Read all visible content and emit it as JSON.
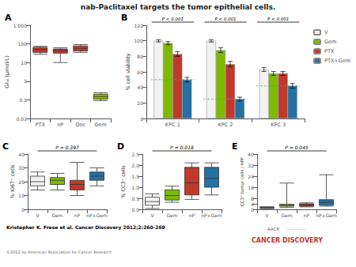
{
  "title": "nab-Paclitaxel targets the tumor epithelial cells.",
  "annotations": [
    {
      "text": "Kristopher K. Frese et al. Cancer Discovery 2012;2:260-269"
    },
    {
      "text": "©2012 by American Association for Cancer Research",
      "color": "#666666"
    },
    {
      "text": "CANCER DISCOVERY",
      "color": "#c0392b"
    },
    {
      "text": "AACR",
      "color": "#666666"
    },
    {
      "text": "—————",
      "color": "#999999"
    }
  ],
  "chart_data": [
    {
      "type": "box",
      "label": "A",
      "ylabel": "GI₅₀ (μmol/L)",
      "categories": [
        "PTX",
        "nP",
        "Doc",
        "Gem"
      ],
      "values": [
        {
          "whislo": 28,
          "q1": 35,
          "med": 50,
          "q3": 65,
          "whishi": 75
        },
        {
          "whislo": 10,
          "q1": 32,
          "med": 43,
          "q3": 53,
          "whishi": 62
        },
        {
          "whislo": 35,
          "q1": 42,
          "med": 58,
          "q3": 78,
          "whishi": 92
        },
        {
          "whislo": 0.09,
          "q1": 0.11,
          "med": 0.15,
          "q3": 0.2,
          "whishi": 0.24
        }
      ],
      "colors": [
        "#c0392b",
        "#c0392b",
        "#c0392b",
        "#8db600"
      ],
      "log": "y",
      "ylim": [
        0.01,
        1000
      ],
      "yticks": [
        0.01,
        0.1,
        1,
        10,
        100,
        {
          "value": 1000,
          "label": "1,000"
        }
      ],
      "grid": false
    },
    {
      "type": "bar",
      "label": "B",
      "ylabel": "% cell viability",
      "categories": [
        "KPC 1",
        "KPC 2",
        "KPC 3"
      ],
      "series": [
        {
          "name": "V",
          "color": "#f2f2f2",
          "values": [
            100,
            100,
            63
          ],
          "errors": [
            1.5,
            1.5,
            2.5
          ]
        },
        {
          "name": "Gem",
          "color": "#7dba00",
          "values": [
            97,
            88,
            58
          ],
          "errors": [
            2,
            3,
            2.5
          ]
        },
        {
          "name": "PTX",
          "color": "#c0392b",
          "values": [
            83,
            70,
            58
          ],
          "errors": [
            3,
            3.5,
            2.5
          ]
        },
        {
          "name": "PTX+Gem",
          "color": "#2471a3",
          "values": [
            50,
            25,
            42
          ],
          "errors": [
            3,
            2.5,
            3
          ]
        },
        {
          "type": "hline",
          "line_style": "dashed",
          "color": "#3cb371",
          "values": [
            50,
            25,
            42
          ]
        }
      ],
      "annotations": [
        "P < 0.001",
        "P < 0.001",
        "P < 0.001"
      ],
      "ylim": [
        0,
        120
      ],
      "yticks": [
        0,
        20,
        40,
        60,
        80,
        100,
        120
      ],
      "legend": "upper right",
      "grid": false
    },
    {
      "type": "box",
      "label": "C",
      "ylabel": "% Ki67⁺ cells",
      "categories": [
        "V",
        "Gem",
        "nP",
        "nP+Gem"
      ],
      "values": [
        {
          "whislo": 14,
          "q1": 17,
          "med": 20,
          "q3": 24,
          "whishi": 27
        },
        {
          "whislo": 14,
          "q1": 18,
          "med": 21,
          "q3": 23,
          "whishi": 26
        },
        {
          "whislo": 10,
          "q1": 14,
          "med": 18,
          "q3": 21,
          "whishi": 34
        },
        {
          "whislo": 17,
          "q1": 21,
          "med": 24,
          "q3": 27,
          "whishi": 30
        }
      ],
      "colors": [
        "#f2f2f2",
        "#7dba00",
        "#c0392b",
        "#2471a3"
      ],
      "annotations": [
        "P = 0.397"
      ],
      "ylim": [
        0,
        40
      ],
      "yticks": [
        0,
        10,
        20,
        30,
        40
      ],
      "grid": false
    },
    {
      "type": "box",
      "label": "D",
      "ylabel": "% CC3⁺ cells",
      "categories": [
        "V",
        "Gem",
        "nP",
        "nP+Gem"
      ],
      "values": [
        {
          "whislo": 0.04,
          "q1": 0.18,
          "med": 0.35,
          "q3": 0.55,
          "whishi": 0.7
        },
        {
          "whislo": 0.32,
          "q1": 0.42,
          "med": 0.62,
          "q3": 0.88,
          "whishi": 1.05
        },
        {
          "whislo": 0.45,
          "q1": 0.65,
          "med": 1.2,
          "q3": 1.9,
          "whishi": 2.1
        },
        {
          "whislo": 0.65,
          "q1": 1.0,
          "med": 1.4,
          "q3": 1.9,
          "whishi": 2.1
        }
      ],
      "colors": [
        "#f2f2f2",
        "#7dba00",
        "#c0392b",
        "#2471a3"
      ],
      "annotations": [
        "P = 0.018"
      ],
      "ylim": [
        0,
        2.5
      ],
      "yticks": [
        {
          "value": 0,
          "label": "0.0"
        },
        0.5,
        {
          "value": 1,
          "label": "1.0"
        },
        1.5,
        {
          "value": 2,
          "label": "2.0"
        },
        2.5
      ],
      "grid": false
    },
    {
      "type": "box",
      "label": "E",
      "ylabel": "CC3⁺ tumor cells / HPF",
      "categories": [
        "V",
        "Gem",
        "nP",
        "nP+Gem"
      ],
      "values": [
        {
          "whislo": 0.5,
          "q1": 0.8,
          "med": 1.2,
          "q3": 1.5,
          "whishi": 1.9
        },
        {
          "whislo": 1.5,
          "q1": 2.3,
          "med": 2.8,
          "q3": 3.7,
          "whishi": 19
        },
        {
          "whislo": 1.8,
          "q1": 2.3,
          "med": 3.3,
          "q3": 4.0,
          "whishi": 4.7
        },
        {
          "whislo": 2.3,
          "q1": 3.0,
          "med": 5.0,
          "q3": 7.0,
          "whishi": 25
        }
      ],
      "colors": [
        "#f2f2f2",
        "#7dba00",
        "#c0392b",
        "#2471a3"
      ],
      "annotations": [
        "P = 0.045"
      ],
      "ylim": [
        0,
        40
      ],
      "yticks": [
        0,
        4,
        8,
        16,
        24,
        32,
        40
      ],
      "grid": false
    }
  ]
}
